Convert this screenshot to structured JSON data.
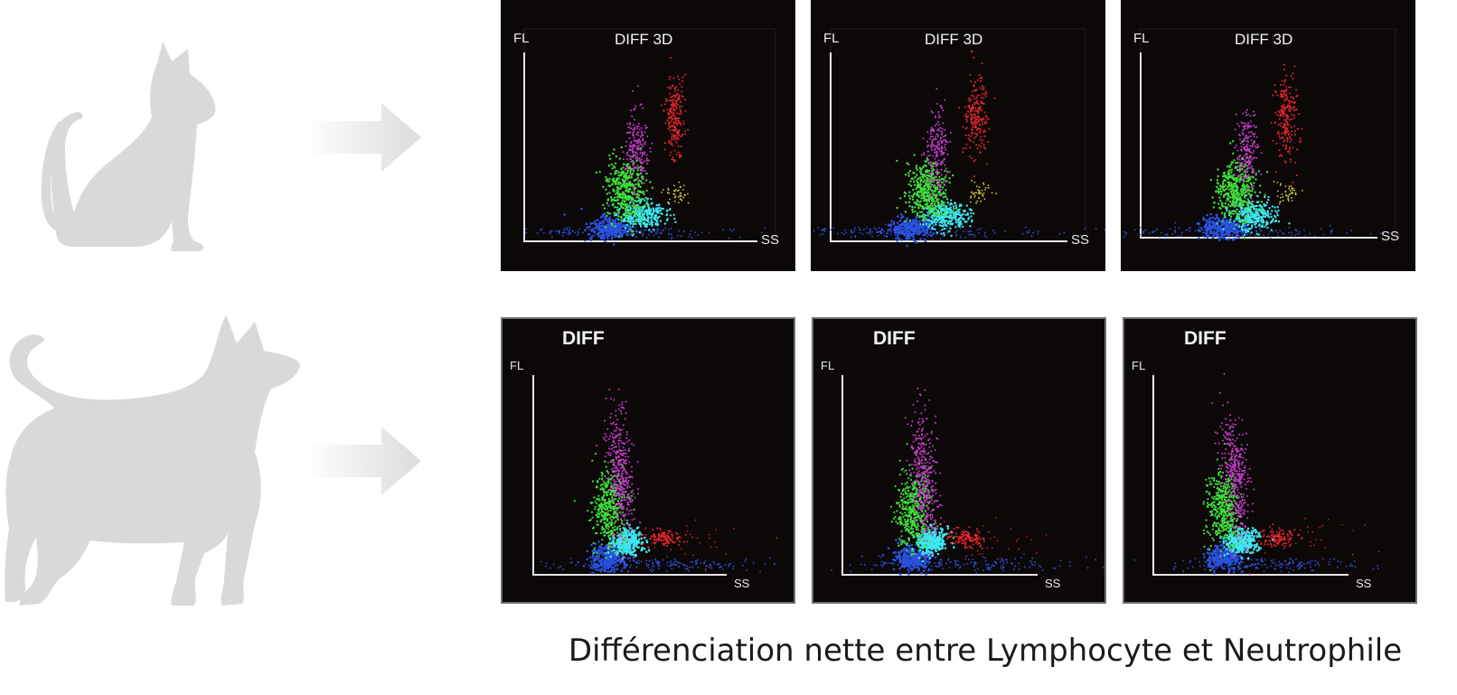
{
  "figure": {
    "caption": "Différenciation nette entre Lymphocyte et Neutrophile"
  },
  "rows": [
    {
      "animal": "cat",
      "animal_icon": "cat-silhouette-icon",
      "panels": [
        {
          "title": "DIFF 3D",
          "y_axis": "FL",
          "x_axis": "SS"
        },
        {
          "title": "DIFF 3D",
          "y_axis": "FL",
          "x_axis": "SS"
        },
        {
          "title": "DIFF 3D",
          "y_axis": "FL",
          "x_axis": "SS"
        }
      ]
    },
    {
      "animal": "dog",
      "animal_icon": "dog-silhouette-icon",
      "panels": [
        {
          "title": "DIFF",
          "y_axis": "FL",
          "x_axis": "SS"
        },
        {
          "title": "DIFF",
          "y_axis": "FL",
          "x_axis": "SS"
        },
        {
          "title": "DIFF",
          "y_axis": "FL",
          "x_axis": "SS"
        }
      ]
    }
  ],
  "colors": {
    "silhouette": "#d9d9d9",
    "panel_bg": "#0c0808",
    "cluster_blue": "#2a52e0",
    "cluster_cyan": "#3fe6f0",
    "cluster_green": "#3fe03a",
    "cluster_magenta": "#c23cc8",
    "cluster_red": "#e0262e",
    "cluster_yellow": "#d8d23a"
  }
}
